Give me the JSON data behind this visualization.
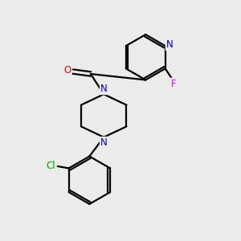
{
  "background_color": "#ebebeb",
  "atom_colors": {
    "N": "#0000cc",
    "O": "#ff0000",
    "F": "#ff00ff",
    "Cl": "#00aa00",
    "C": "#000000"
  },
  "bond_color": "#000000",
  "bond_width": 1.6,
  "font_size_atoms": 8.5
}
